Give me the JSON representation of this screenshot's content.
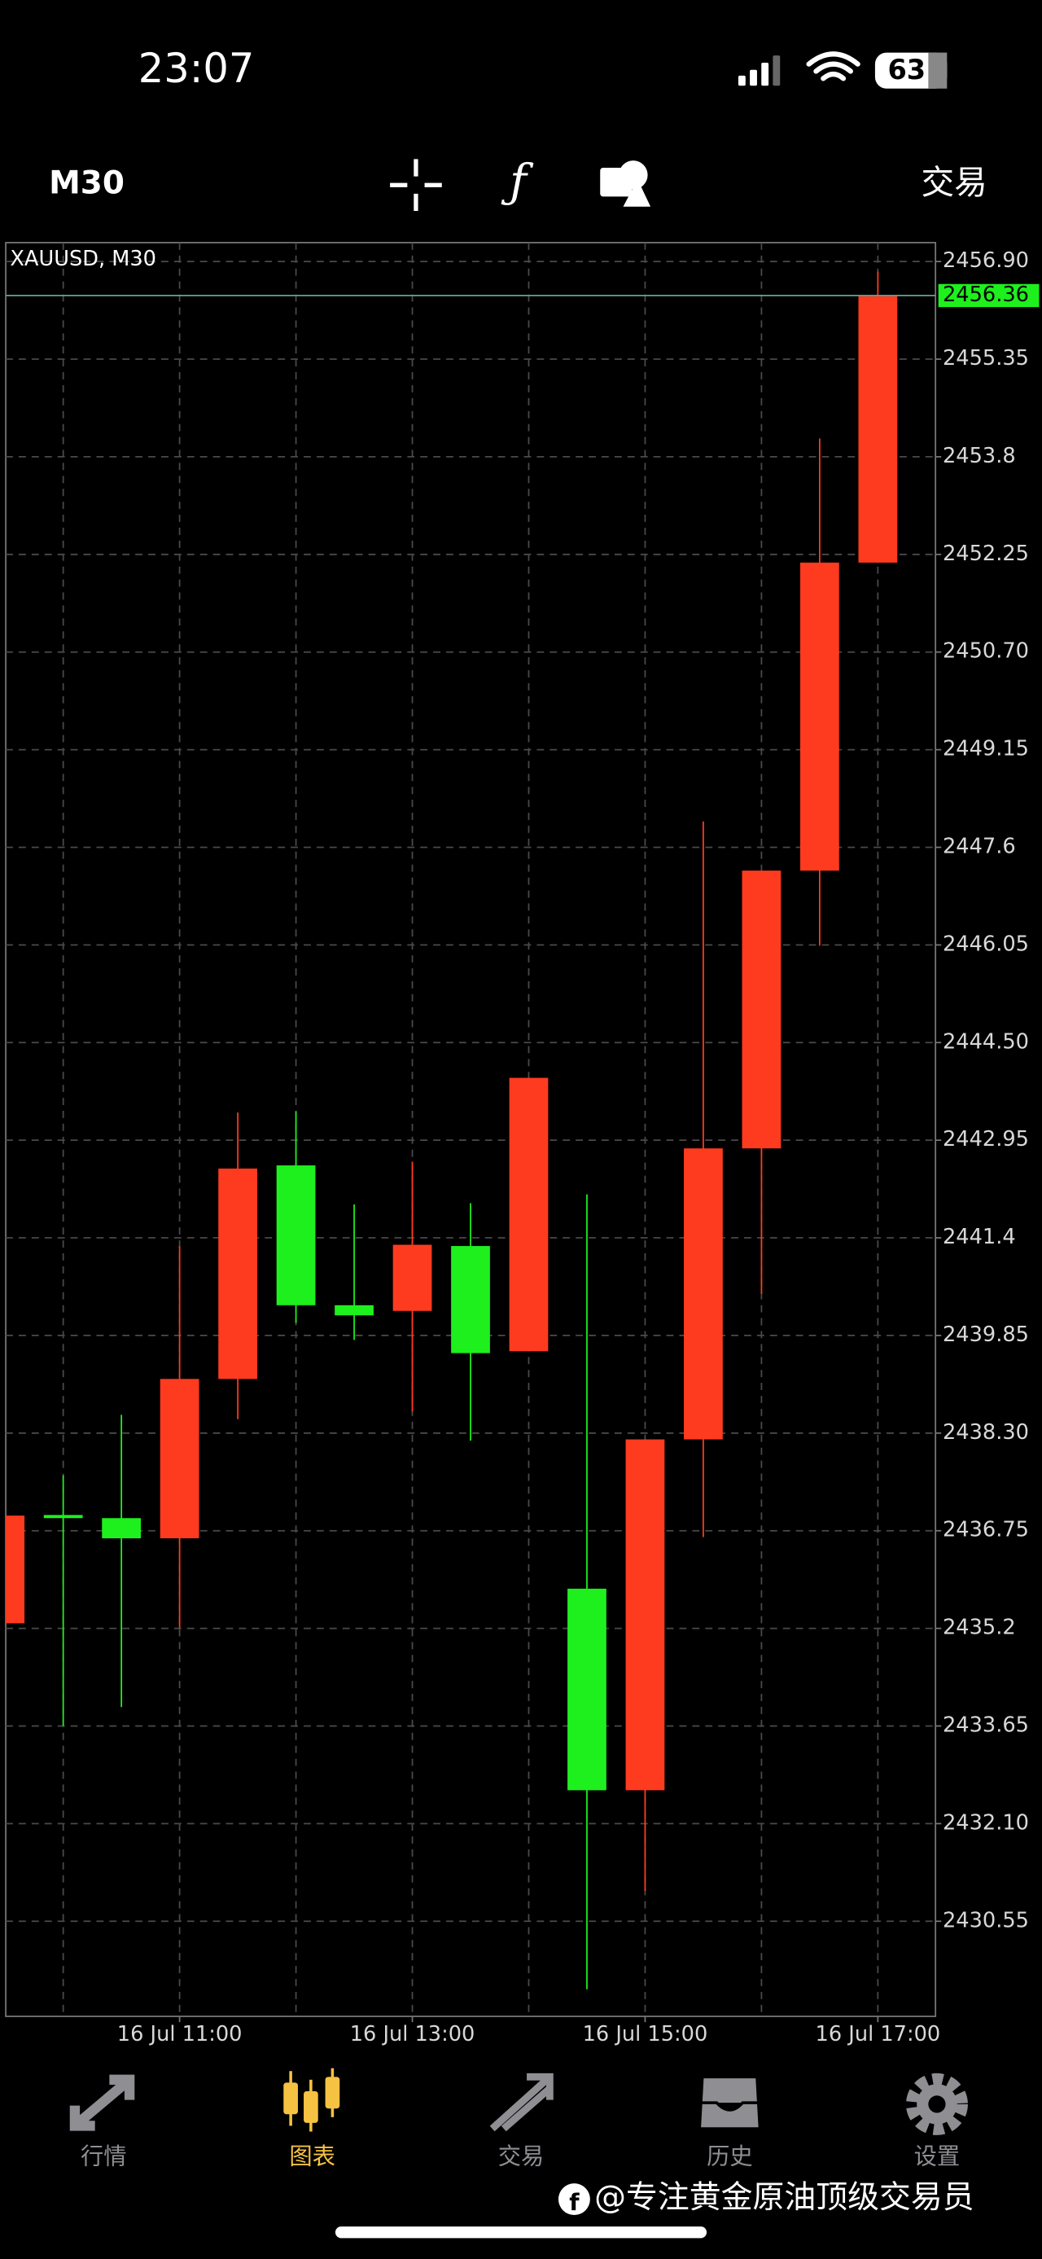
{
  "status_bar": {
    "time": "23:07",
    "battery": "63"
  },
  "toolbar": {
    "timeframe": "M30",
    "trade": "交易"
  },
  "chart_data": {
    "type": "candlestick",
    "title": "XAUUSD, M30",
    "categories": [
      null,
      null,
      null,
      "16 Jul 11:00",
      null,
      null,
      null,
      "16 Jul 13:00",
      null,
      null,
      null,
      "16 Jul 15:00",
      null,
      null,
      null,
      "16 Jul 17:00"
    ],
    "open": [
      2435.28,
      2437.0,
      2436.95,
      2436.63,
      2439.16,
      2442.55,
      2440.33,
      2440.24,
      2441.27,
      2439.6,
      2435.83,
      2432.63,
      2438.2,
      2442.82,
      2447.23,
      2452.12
    ],
    "high": [
      2436.99,
      2437.63,
      2438.59,
      2441.27,
      2443.39,
      2443.41,
      2441.93,
      2442.61,
      2441.95,
      2443.94,
      2442.09,
      2438.2,
      2448.01,
      2447.23,
      2454.09,
      2456.74
    ],
    "low": [
      2435.28,
      2433.65,
      2433.95,
      2435.21,
      2438.52,
      2440.05,
      2439.78,
      2438.64,
      2438.18,
      2439.6,
      2429.47,
      2431.03,
      2436.65,
      2440.51,
      2446.04,
      2452.12
    ],
    "close": [
      2436.99,
      2436.95,
      2436.63,
      2439.16,
      2442.5,
      2440.33,
      2440.17,
      2441.29,
      2439.57,
      2443.94,
      2432.63,
      2438.2,
      2442.82,
      2447.23,
      2452.12,
      2456.35
    ],
    "ylim": [
      2429.04,
      2457.2
    ],
    "yticks": [
      {
        "value": 2456.9,
        "label": "2456.90"
      },
      2455.35,
      2453.8,
      2452.25,
      {
        "value": 2450.7,
        "label": "2450.70"
      },
      2449.15,
      2447.6,
      2446.05,
      {
        "value": 2444.5,
        "label": "2444.50"
      },
      2442.95,
      2441.4,
      2439.85,
      {
        "value": 2438.3,
        "label": "2438.30"
      },
      2436.75,
      2435.2,
      2433.65,
      {
        "value": 2432.1,
        "label": "2432.10"
      },
      2430.55
    ],
    "last_price": 2456.36,
    "up_color": "#ff3b1f",
    "down_color": "#1ef01e",
    "grid": true
  },
  "nav": {
    "items": [
      "行情",
      "图表",
      "交易",
      "历史",
      "设置"
    ],
    "active": 1
  },
  "watermark": "@专注黄金原油顶级交易员"
}
